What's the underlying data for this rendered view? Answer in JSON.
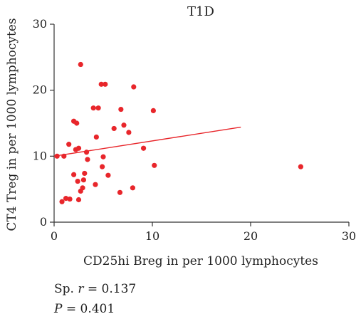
{
  "chart_data": {
    "type": "scatter",
    "title": "T1D",
    "xlabel": "CD25hi Breg in per 1000 lymphocytes",
    "ylabel": "CT4 Treg in per 1000 lymphocytes",
    "xlim": [
      0,
      30
    ],
    "ylim": [
      0,
      30
    ],
    "x_ticks": [
      "0",
      "10",
      "20",
      "30"
    ],
    "x_tick_values": [
      0,
      10,
      20,
      30
    ],
    "y_ticks": [
      "0",
      "10",
      "20",
      "30"
    ],
    "y_tick_values": [
      0,
      10,
      20,
      30
    ],
    "x_tick_labels_display": [
      "0",
      "10",
      "20",
      "30"
    ],
    "y_tick_labels_display": [
      "0",
      "10",
      "20",
      "30"
    ],
    "points": [
      {
        "x": 0.3,
        "y": 10.0
      },
      {
        "x": 0.8,
        "y": 3.1
      },
      {
        "x": 1.0,
        "y": 10.0
      },
      {
        "x": 1.2,
        "y": 3.6
      },
      {
        "x": 1.5,
        "y": 11.8
      },
      {
        "x": 1.6,
        "y": 3.5
      },
      {
        "x": 2.0,
        "y": 7.2
      },
      {
        "x": 2.0,
        "y": 15.3
      },
      {
        "x": 2.2,
        "y": 11.0
      },
      {
        "x": 2.3,
        "y": 15.0
      },
      {
        "x": 2.4,
        "y": 6.2
      },
      {
        "x": 2.5,
        "y": 11.2
      },
      {
        "x": 2.5,
        "y": 3.4
      },
      {
        "x": 2.7,
        "y": 4.7
      },
      {
        "x": 2.9,
        "y": 5.2
      },
      {
        "x": 3.0,
        "y": 6.4
      },
      {
        "x": 3.1,
        "y": 7.4
      },
      {
        "x": 3.3,
        "y": 10.6
      },
      {
        "x": 3.4,
        "y": 9.5
      },
      {
        "x": 2.7,
        "y": 23.9
      },
      {
        "x": 4.0,
        "y": 17.3
      },
      {
        "x": 4.2,
        "y": 5.7
      },
      {
        "x": 4.3,
        "y": 12.9
      },
      {
        "x": 4.5,
        "y": 17.3
      },
      {
        "x": 4.8,
        "y": 20.9
      },
      {
        "x": 4.9,
        "y": 8.4
      },
      {
        "x": 5.0,
        "y": 9.9
      },
      {
        "x": 5.2,
        "y": 20.9
      },
      {
        "x": 5.5,
        "y": 7.1
      },
      {
        "x": 6.1,
        "y": 14.2
      },
      {
        "x": 6.7,
        "y": 4.5
      },
      {
        "x": 6.8,
        "y": 17.1
      },
      {
        "x": 7.1,
        "y": 14.7
      },
      {
        "x": 7.6,
        "y": 13.6
      },
      {
        "x": 8.0,
        "y": 5.2
      },
      {
        "x": 8.1,
        "y": 20.5
      },
      {
        "x": 9.1,
        "y": 11.2
      },
      {
        "x": 10.1,
        "y": 16.9
      },
      {
        "x": 10.2,
        "y": 8.6
      },
      {
        "x": 25.1,
        "y": 8.4
      }
    ],
    "trendline": {
      "x": [
        0,
        19.0
      ],
      "y": [
        10.0,
        14.4
      ]
    },
    "grid": false
  },
  "stats": {
    "r_prefix": "Sp. ",
    "r_symbol": "r",
    "r_value": " = 0.137",
    "p_symbol": "P",
    "p_value": " = 0.401"
  }
}
